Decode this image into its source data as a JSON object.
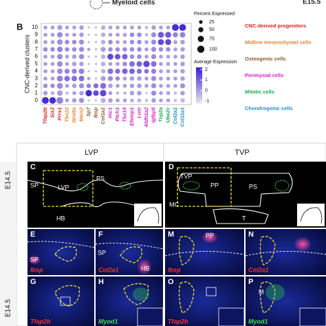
{
  "header": {
    "myeloid": "Myeloid cells",
    "stage": "E15.5"
  },
  "dot_plot": {
    "label": "B",
    "y_title": "CNC-derived clusters",
    "clusters": [
      0,
      1,
      2,
      3,
      4,
      5,
      6,
      7,
      8,
      9,
      10
    ],
    "groups": [
      {
        "name": "CNC-derived progenitors",
        "color": "#e0201c",
        "genes": [
          "Tfap2b",
          "Six2",
          "Prrx1"
        ]
      },
      {
        "name": "Midline mesenchymal cells",
        "color": "#e8822a",
        "genes": [
          "Tbx22",
          "Wnt5a",
          "Meis2"
        ]
      },
      {
        "name": "Osteogenic cells",
        "color": "#8a5a2b",
        "genes": [
          "Sp7",
          "Ibsp",
          "Col1a1"
        ]
      },
      {
        "name": "Perimysial cells",
        "color": "#d61fc7",
        "genes": [
          "Hic1",
          "Ptch1",
          "Tbx15",
          "Efemp1",
          "Lum",
          "Aldh1a2",
          "Igfbp5"
        ]
      },
      {
        "name": "Mitotic cells",
        "color": "#1aa84a",
        "genes": [
          "Top2a",
          "Ube2c"
        ]
      },
      {
        "name": "Chondrogenic cells",
        "color": "#1a8fd6",
        "genes": [
          "Col2a1",
          "Col11a1"
        ]
      }
    ],
    "size_legend": {
      "title": "Percent Expressed",
      "values": [
        25,
        50,
        75,
        100
      ]
    },
    "color_legend": {
      "title": "Average Expression",
      "ticks": [
        2,
        1,
        0,
        -1
      ],
      "lim": [
        -1.2,
        2.2
      ]
    },
    "percent": [
      [
        90,
        85,
        90,
        30,
        40,
        50,
        10,
        10,
        50,
        40,
        30,
        30,
        30,
        30,
        20,
        40,
        30,
        30,
        20,
        40
      ],
      [
        40,
        30,
        60,
        20,
        30,
        40,
        80,
        60,
        80,
        30,
        20,
        20,
        40,
        40,
        10,
        50,
        30,
        30,
        20,
        40
      ],
      [
        40,
        40,
        70,
        30,
        40,
        50,
        40,
        50,
        70,
        40,
        30,
        30,
        40,
        40,
        30,
        50,
        30,
        30,
        30,
        50
      ],
      [
        30,
        30,
        70,
        60,
        60,
        60,
        20,
        10,
        50,
        50,
        40,
        30,
        40,
        40,
        30,
        50,
        30,
        30,
        30,
        40
      ],
      [
        30,
        30,
        60,
        50,
        50,
        60,
        10,
        10,
        40,
        60,
        50,
        60,
        60,
        50,
        40,
        50,
        30,
        30,
        30,
        40
      ],
      [
        30,
        30,
        60,
        30,
        40,
        40,
        10,
        10,
        40,
        30,
        30,
        40,
        60,
        60,
        80,
        60,
        30,
        30,
        30,
        40
      ],
      [
        30,
        30,
        60,
        30,
        40,
        50,
        10,
        10,
        40,
        70,
        60,
        60,
        40,
        40,
        30,
        50,
        30,
        30,
        30,
        40
      ],
      [
        40,
        40,
        60,
        40,
        40,
        50,
        20,
        10,
        50,
        40,
        40,
        40,
        40,
        40,
        30,
        50,
        40,
        40,
        30,
        40
      ],
      [
        30,
        30,
        60,
        40,
        40,
        50,
        10,
        10,
        40,
        40,
        30,
        30,
        40,
        40,
        30,
        50,
        70,
        70,
        30,
        40
      ],
      [
        30,
        30,
        60,
        30,
        30,
        40,
        10,
        10,
        40,
        30,
        30,
        30,
        40,
        40,
        20,
        50,
        70,
        70,
        50,
        60
      ],
      [
        30,
        30,
        50,
        30,
        30,
        40,
        10,
        10,
        40,
        30,
        30,
        30,
        30,
        30,
        20,
        40,
        30,
        30,
        90,
        90
      ]
    ],
    "expression": [
      [
        2,
        2,
        0.5,
        0,
        0,
        0.2,
        -0.5,
        -0.5,
        -0.3,
        0,
        0,
        0,
        -0.3,
        -0.3,
        -0.5,
        0,
        0,
        0,
        -0.5,
        -0.5
      ],
      [
        0,
        -0.3,
        0,
        -0.5,
        0,
        0,
        2,
        1.5,
        1.5,
        0,
        -0.3,
        -0.3,
        0,
        0,
        -0.5,
        0.3,
        0,
        0,
        -0.5,
        0
      ],
      [
        0.2,
        0.3,
        0.3,
        0,
        0,
        0.3,
        0.5,
        0.8,
        0.8,
        0,
        0,
        0,
        0,
        0,
        0,
        0.3,
        0,
        0,
        0,
        0.2
      ],
      [
        0,
        0,
        0.5,
        0.8,
        0.8,
        0.8,
        0,
        -0.5,
        0,
        0.3,
        0.3,
        0,
        0,
        0,
        0,
        0.3,
        0,
        0,
        0,
        0
      ],
      [
        0,
        0,
        0.3,
        0.5,
        0.5,
        0.5,
        -0.5,
        -0.5,
        -0.3,
        0.8,
        0.8,
        1,
        1,
        0.8,
        0.8,
        0.5,
        0,
        0,
        0,
        0
      ],
      [
        0,
        0,
        0.3,
        0,
        0,
        0,
        -0.5,
        -0.5,
        -0.3,
        0,
        0,
        0.3,
        0.8,
        1,
        1.5,
        0.8,
        0,
        0,
        0,
        0
      ],
      [
        0,
        0,
        0.3,
        0,
        0,
        0.3,
        -0.5,
        -0.5,
        -0.3,
        1.5,
        1.3,
        1,
        0.3,
        0.3,
        0,
        0.3,
        0,
        0,
        0,
        0
      ],
      [
        0.3,
        0.3,
        0.5,
        0.3,
        0.3,
        0.3,
        0,
        -0.5,
        0,
        0.3,
        0.3,
        0.3,
        0.3,
        0.3,
        0,
        0.3,
        0.3,
        0.3,
        0,
        0
      ],
      [
        0,
        0,
        0.3,
        0.3,
        0.3,
        0.3,
        -0.5,
        -0.5,
        -0.3,
        0.3,
        0,
        0,
        0.3,
        0.3,
        0,
        0.3,
        1.5,
        1.5,
        0,
        0
      ],
      [
        0,
        0,
        0.3,
        0,
        0,
        0,
        -0.5,
        -0.5,
        -0.3,
        0,
        0,
        0,
        0.3,
        0.3,
        -0.3,
        0.3,
        1.2,
        1.2,
        0.5,
        0.5
      ],
      [
        0,
        0,
        0,
        0,
        0,
        0,
        -0.5,
        -0.5,
        -0.3,
        0,
        0,
        0,
        0,
        0,
        -0.3,
        0,
        0,
        0,
        2,
        2
      ]
    ]
  },
  "columns": {
    "left": "LVP",
    "right": "TVP"
  },
  "stage_labels": [
    "E14.5",
    "E14.5"
  ],
  "panels": {
    "C": {
      "letter": "C",
      "labels": [
        "SP",
        "LVP",
        "PS",
        "HB"
      ]
    },
    "D": {
      "letter": "D",
      "labels": [
        "TVP",
        "PP",
        "PS",
        "MC",
        "T"
      ]
    },
    "E": {
      "letter": "E",
      "stain": "Ibsp",
      "labels": [
        "SP"
      ]
    },
    "F": {
      "letter": "F",
      "stain": "Col2a1",
      "labels": [
        "SP",
        "HB"
      ]
    },
    "M": {
      "letter": "M",
      "stain": "Ibsp",
      "labels": [
        "PP"
      ]
    },
    "N": {
      "letter": "N",
      "stain": "Col2a1"
    },
    "G": {
      "letter": "G",
      "stain": "Tfap2b"
    },
    "H": {
      "letter": "H",
      "stain": "Myod1"
    },
    "O": {
      "letter": "O",
      "stain": "Tfap2b"
    },
    "P": {
      "letter": "P",
      "stain": "Myod1",
      "labels": [
        "M"
      ]
    }
  }
}
